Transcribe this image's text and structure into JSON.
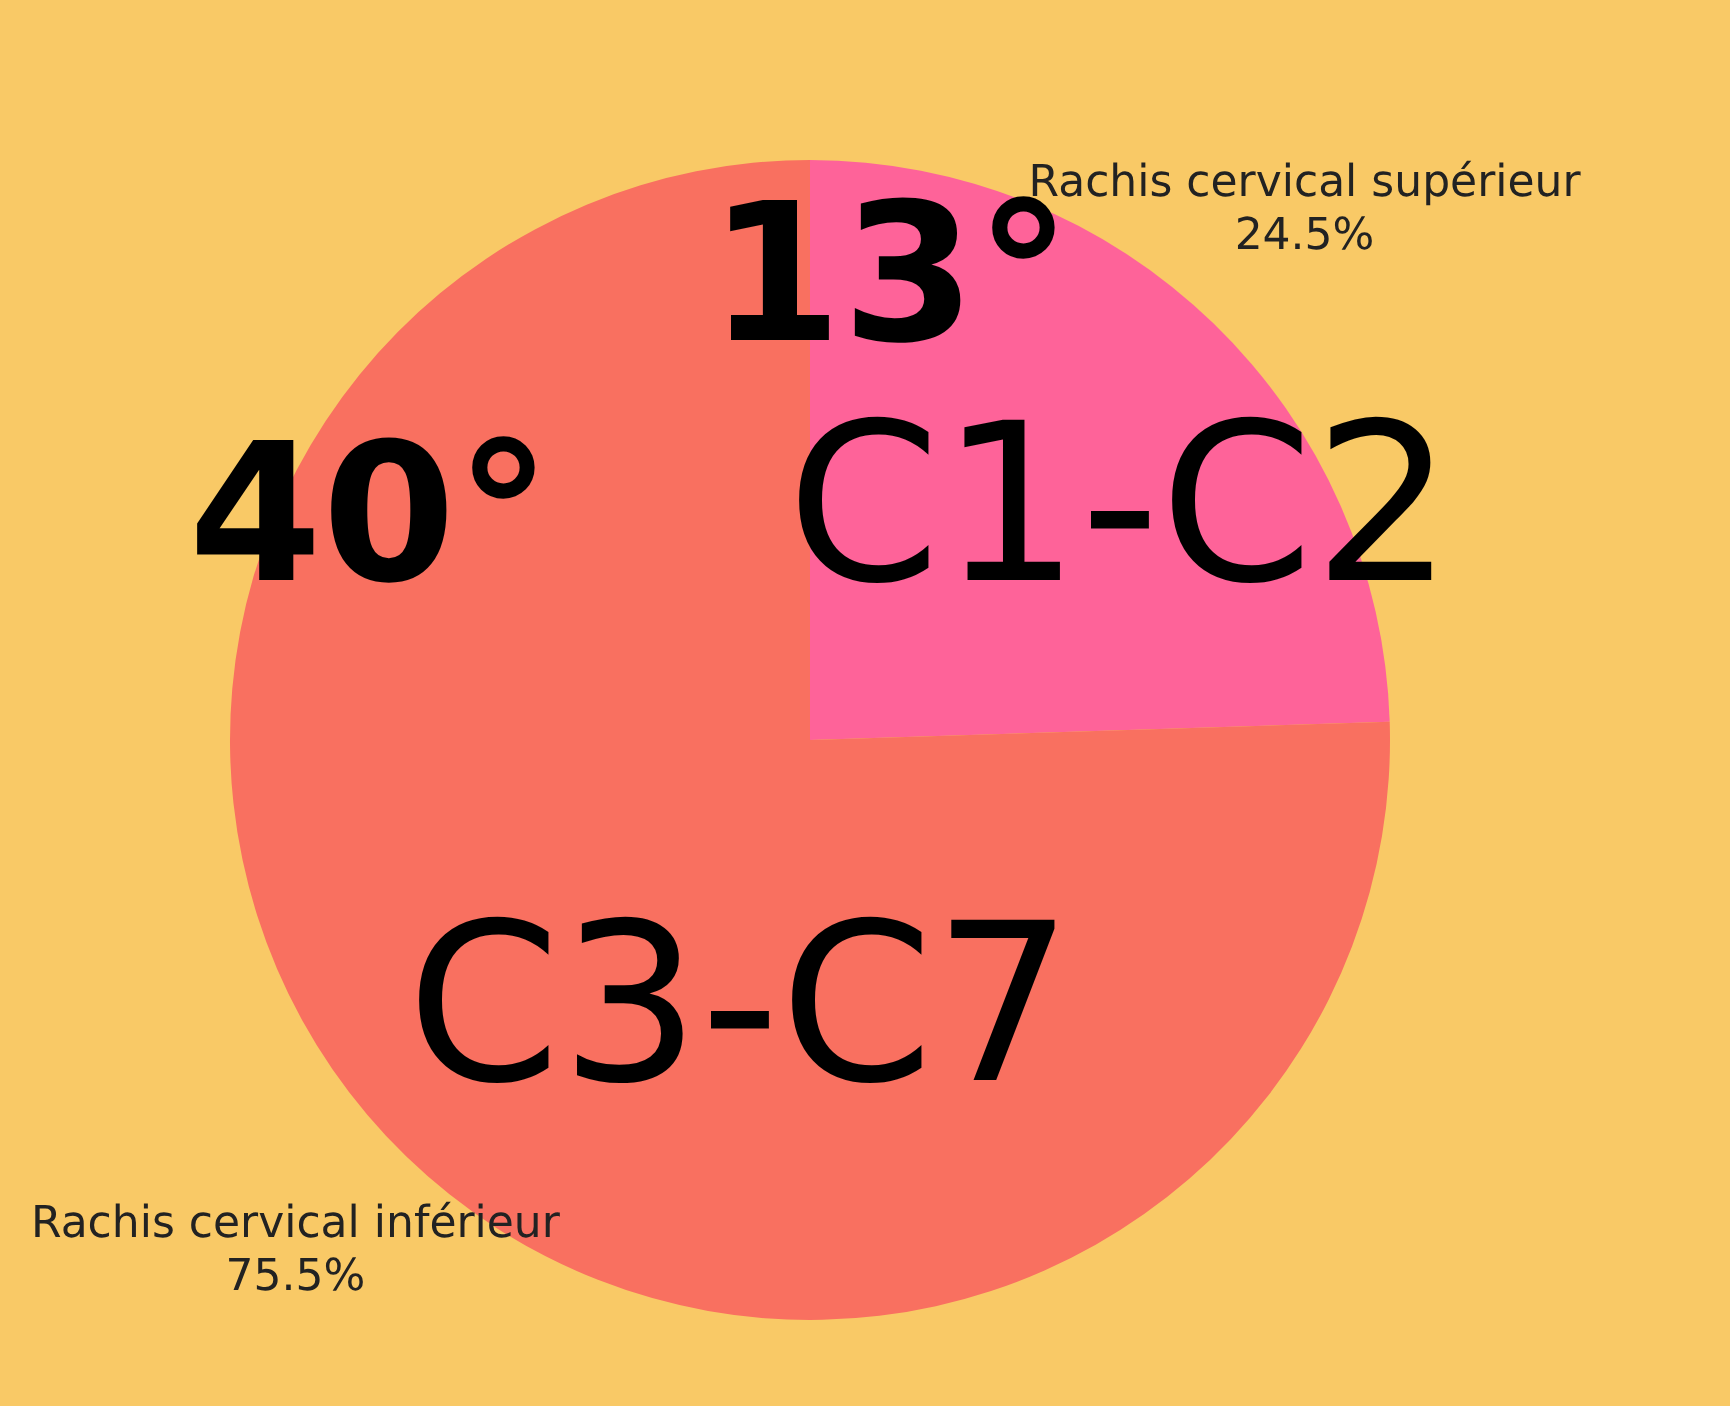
{
  "chart_data": {
    "type": "pie",
    "categories": [
      "Rachis cervical supérieur",
      "Rachis cervical inférieur"
    ],
    "values": [
      24.5,
      75.5
    ],
    "value_labels": [
      "24.5%",
      "75.5%"
    ],
    "colors": [
      "#fe6399",
      "#f97060"
    ],
    "annotations": [
      "13°",
      "C1-C2",
      "40°",
      "C3-C7"
    ],
    "legend": false
  }
}
